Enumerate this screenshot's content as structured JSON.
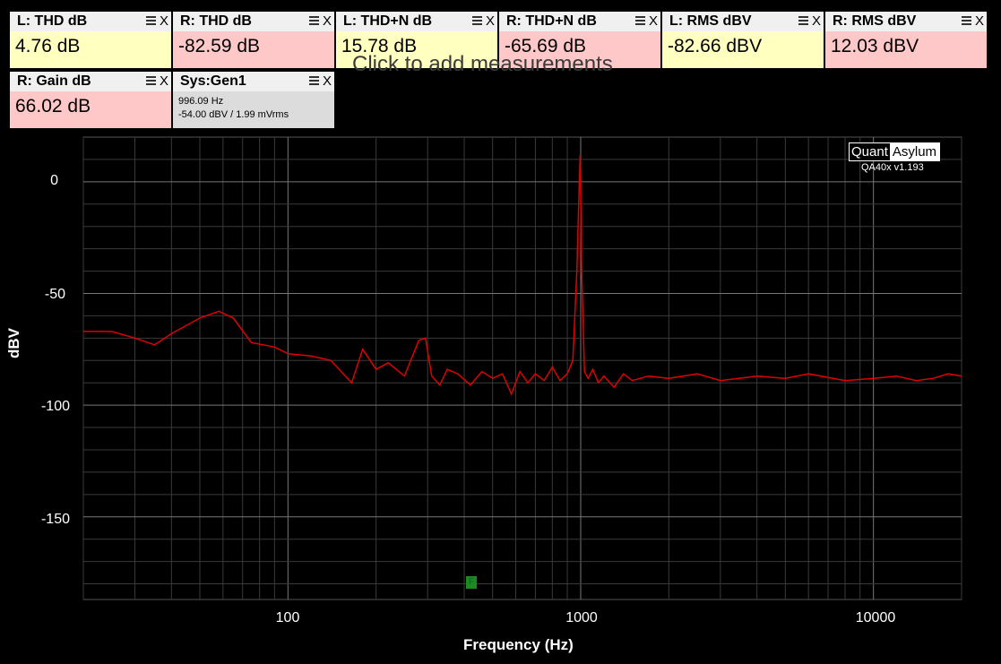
{
  "tiles": [
    {
      "title": "L: THD dB",
      "value": "4.76 dB"
    },
    {
      "title": "R: THD dB",
      "value": "-82.59 dB"
    },
    {
      "title": "L: THD+N dB",
      "value": "15.78 dB"
    },
    {
      "title": "R: THD+N dB",
      "value": "-65.69 dB"
    },
    {
      "title": "L: RMS dBV",
      "value": "-82.66 dBV"
    },
    {
      "title": "R: RMS dBV",
      "value": "12.03 dBV"
    },
    {
      "title": "R: Gain dB",
      "value": "66.02 dB"
    }
  ],
  "generator": {
    "title": "Sys:Gen1",
    "freq": "996.09 Hz",
    "level": "-54.00 dBV  / 1.99 mVrms"
  },
  "tile_icons": {
    "menu": "menu-icon",
    "close": "X"
  },
  "add_hint": "Click to add measurements",
  "colors": {
    "yellow_tile": "#ffffc0",
    "pink_tile": "#ffc8c8",
    "trace": "#e00000",
    "background": "#000000"
  },
  "brand": {
    "part1": "Quant",
    "part2": "Asylum",
    "version": "QA40x v1.193"
  },
  "marker_label": "F",
  "chart_data": {
    "type": "line",
    "xlabel": "Frequency (Hz)",
    "ylabel": "dBV",
    "x_scale": "log",
    "xlim": [
      20,
      20000
    ],
    "ylim": [
      -187,
      20
    ],
    "x_ticks": [
      "100",
      "1000",
      "10000"
    ],
    "y_ticks": [
      "0",
      "-50",
      "-100",
      "-150"
    ],
    "grid": true,
    "series": [
      {
        "x": [
          20,
          25,
          30,
          35,
          40,
          50,
          58,
          65,
          75,
          90,
          100,
          120,
          140,
          165,
          180,
          200,
          220,
          250,
          280,
          295,
          310,
          330,
          350,
          380,
          420,
          460,
          500,
          540,
          580,
          620,
          660,
          700,
          750,
          800,
          850,
          900,
          940,
          970,
          985,
          996,
          1008,
          1030,
          1060,
          1100,
          1150,
          1200,
          1300,
          1400,
          1500,
          1700,
          2000,
          2500,
          3000,
          4000,
          5000,
          6000,
          8000,
          10000,
          12000,
          14000,
          16000,
          18000,
          20000
        ],
        "y": [
          -67,
          -67,
          -70,
          -73,
          -68,
          -61,
          -58,
          -61,
          -72,
          -74,
          -77,
          -78,
          -80,
          -90,
          -75,
          -84,
          -81,
          -87,
          -71,
          -70,
          -87,
          -91,
          -84,
          -86,
          -91,
          -85,
          -88,
          -86,
          -95,
          -85,
          -90,
          -86,
          -89,
          -83,
          -89,
          -86,
          -80,
          -40,
          -8,
          12,
          -40,
          -85,
          -88,
          -84,
          -90,
          -87,
          -92,
          -86,
          -89,
          -87,
          -88,
          -86,
          -89,
          -87,
          -88,
          -86,
          -89,
          -88,
          -87,
          -89,
          -88,
          -86,
          -87
        ]
      }
    ]
  }
}
